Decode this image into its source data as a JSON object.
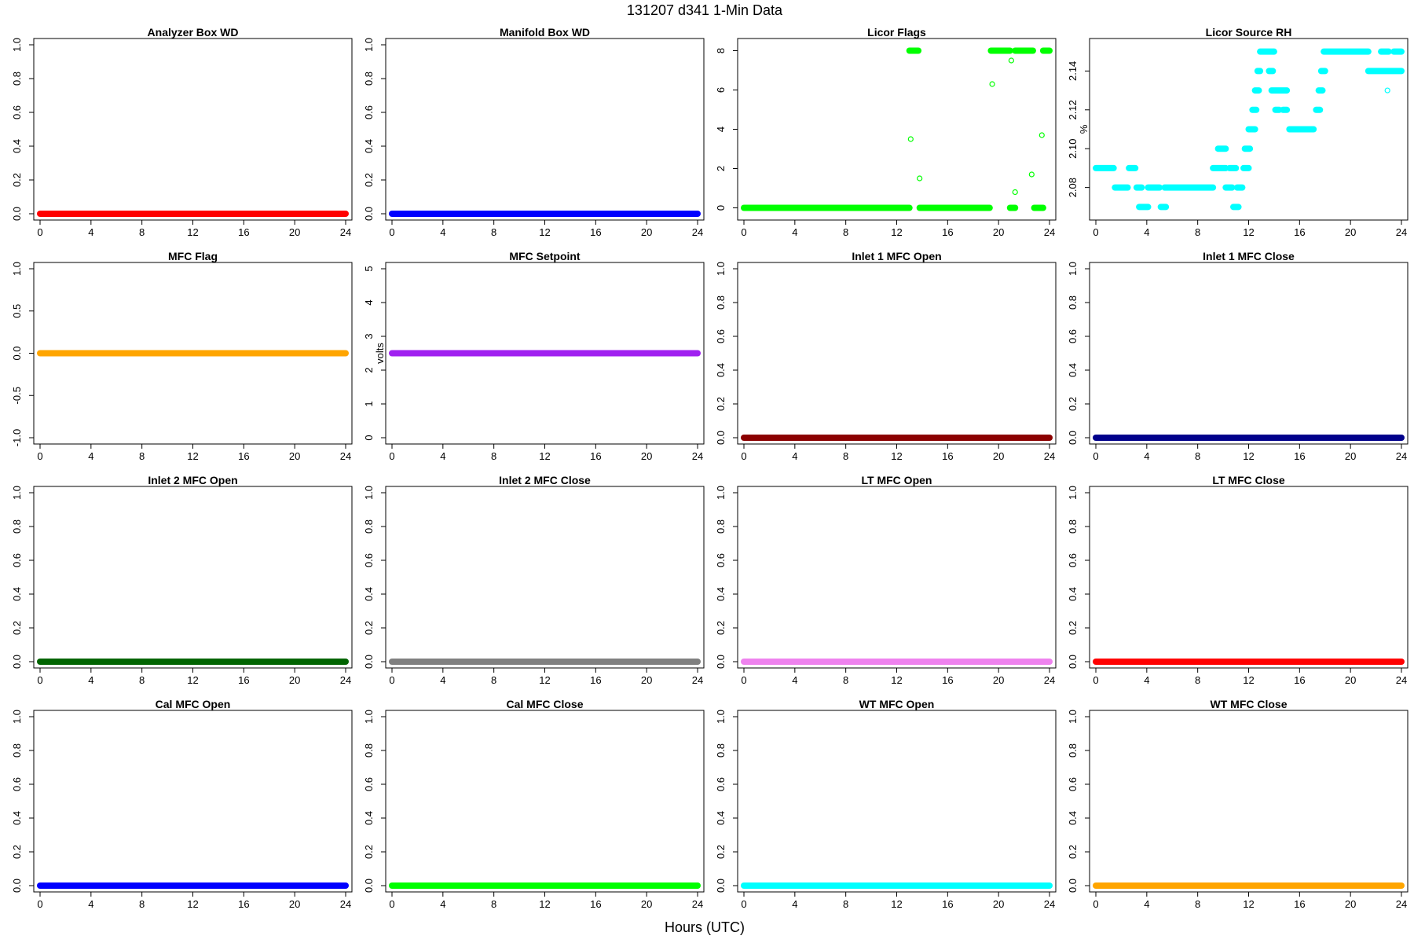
{
  "figure": {
    "title": "131207   d341   1-Min Data",
    "xlabel": "Hours (UTC)"
  },
  "chart_data": [
    {
      "type": "scatter",
      "title": "Analyzer Box WD",
      "ylabel": "",
      "color": "#ff0000",
      "xlim": [
        0,
        24
      ],
      "xticks": [
        0,
        4,
        8,
        12,
        16,
        20,
        24
      ],
      "ylim": [
        0,
        1
      ],
      "yticks": [
        0.0,
        0.2,
        0.4,
        0.6,
        0.8,
        1.0
      ],
      "ytick_labels": [
        "0.0",
        "0.2",
        "0.4",
        "0.6",
        "0.8",
        "1.0"
      ],
      "series": [
        {
          "x_range": [
            0,
            24
          ],
          "y": 0
        }
      ]
    },
    {
      "type": "scatter",
      "title": "Manifold Box WD",
      "ylabel": "",
      "color": "#0000ff",
      "xlim": [
        0,
        24
      ],
      "xticks": [
        0,
        4,
        8,
        12,
        16,
        20,
        24
      ],
      "ylim": [
        0,
        1
      ],
      "yticks": [
        0.0,
        0.2,
        0.4,
        0.6,
        0.8,
        1.0
      ],
      "ytick_labels": [
        "0.0",
        "0.2",
        "0.4",
        "0.6",
        "0.8",
        "1.0"
      ],
      "series": [
        {
          "x_range": [
            0,
            24
          ],
          "y": 0
        }
      ]
    },
    {
      "type": "scatter",
      "title": "Licor Flags",
      "ylabel": "",
      "color": "#00ff00",
      "xlim": [
        0,
        24
      ],
      "xticks": [
        0,
        4,
        8,
        12,
        16,
        20,
        24
      ],
      "ylim": [
        -0.3,
        8.3
      ],
      "yticks": [
        0,
        2,
        4,
        6,
        8
      ],
      "ytick_labels": [
        "0",
        "2",
        "4",
        "6",
        "8"
      ],
      "series": [
        {
          "x_range": [
            0,
            13.0
          ],
          "y": 0
        },
        {
          "x_range": [
            13.0,
            13.7
          ],
          "y": 8
        },
        {
          "x_range": [
            13.8,
            19.3
          ],
          "y": 0
        },
        {
          "x_range": [
            19.4,
            20.9
          ],
          "y": 8
        },
        {
          "x_range": [
            20.9,
            21.3
          ],
          "y": 0
        },
        {
          "x_range": [
            21.3,
            22.7
          ],
          "y": 8
        },
        {
          "x_range": [
            22.8,
            23.5
          ],
          "y": 0
        },
        {
          "x_range": [
            23.5,
            24
          ],
          "y": 8
        }
      ],
      "points": [
        [
          13.1,
          3.5
        ],
        [
          13.8,
          1.5
        ],
        [
          19.5,
          6.3
        ],
        [
          21.0,
          7.5
        ],
        [
          21.3,
          0.8
        ],
        [
          22.6,
          1.7
        ],
        [
          23.4,
          3.7
        ]
      ]
    },
    {
      "type": "scatter",
      "title": "Licor Source RH",
      "ylabel": "%",
      "color": "#00ffff",
      "xlim": [
        0,
        24
      ],
      "xticks": [
        0,
        4,
        8,
        12,
        16,
        20,
        24
      ],
      "ylim": [
        2.0665,
        2.1535
      ],
      "yticks": [
        2.08,
        2.1,
        2.12,
        2.14
      ],
      "ytick_labels": [
        "2.08",
        "2.10",
        "2.12",
        "2.14"
      ],
      "series": [
        {
          "x_range": [
            0,
            1.4
          ],
          "y": 2.09
        },
        {
          "x_range": [
            1.5,
            2.5
          ],
          "y": 2.08
        },
        {
          "x_range": [
            2.6,
            3.1
          ],
          "y": 2.09
        },
        {
          "x_range": [
            3.2,
            3.6
          ],
          "y": 2.08
        },
        {
          "x_range": [
            3.4,
            4.1
          ],
          "y": 2.07
        },
        {
          "x_range": [
            4.1,
            5.0
          ],
          "y": 2.08
        },
        {
          "x_range": [
            5.1,
            5.5
          ],
          "y": 2.07
        },
        {
          "x_range": [
            5.4,
            9.2
          ],
          "y": 2.08
        },
        {
          "x_range": [
            9.2,
            10.2
          ],
          "y": 2.09
        },
        {
          "x_range": [
            9.6,
            10.2
          ],
          "y": 2.1
        },
        {
          "x_range": [
            10.2,
            10.7
          ],
          "y": 2.08
        },
        {
          "x_range": [
            10.5,
            11.0
          ],
          "y": 2.09
        },
        {
          "x_range": [
            10.8,
            11.2
          ],
          "y": 2.07
        },
        {
          "x_range": [
            11.1,
            11.5
          ],
          "y": 2.08
        },
        {
          "x_range": [
            11.6,
            12.0
          ],
          "y": 2.09
        },
        {
          "x_range": [
            11.7,
            12.1
          ],
          "y": 2.1
        },
        {
          "x_range": [
            12.0,
            12.5
          ],
          "y": 2.11
        },
        {
          "x_range": [
            12.3,
            12.6
          ],
          "y": 2.12
        },
        {
          "x_range": [
            12.5,
            12.8
          ],
          "y": 2.13
        },
        {
          "x_range": [
            12.7,
            12.9
          ],
          "y": 2.14
        },
        {
          "x_range": [
            12.9,
            14.0
          ],
          "y": 2.15
        },
        {
          "x_range": [
            13.6,
            13.9
          ],
          "y": 2.14
        },
        {
          "x_range": [
            13.8,
            15.0
          ],
          "y": 2.13
        },
        {
          "x_range": [
            14.1,
            14.4
          ],
          "y": 2.12
        },
        {
          "x_range": [
            14.7,
            15.0
          ],
          "y": 2.12
        },
        {
          "x_range": [
            15.2,
            17.1
          ],
          "y": 2.11
        },
        {
          "x_range": [
            17.3,
            17.6
          ],
          "y": 2.12
        },
        {
          "x_range": [
            17.5,
            17.8
          ],
          "y": 2.13
        },
        {
          "x_range": [
            17.7,
            18.0
          ],
          "y": 2.14
        },
        {
          "x_range": [
            17.9,
            21.4
          ],
          "y": 2.15
        },
        {
          "x_range": [
            21.4,
            24.0
          ],
          "y": 2.14
        },
        {
          "x_range": [
            22.4,
            23.0
          ],
          "y": 2.15
        },
        {
          "x_range": [
            23.4,
            24.0
          ],
          "y": 2.15
        }
      ],
      "points": [
        [
          22.9,
          2.13
        ]
      ]
    },
    {
      "type": "scatter",
      "title": "MFC Flag",
      "ylabel": "",
      "color": "#ffa500",
      "xlim": [
        0,
        24
      ],
      "xticks": [
        0,
        4,
        8,
        12,
        16,
        20,
        24
      ],
      "ylim": [
        -1,
        1
      ],
      "yticks": [
        -1.0,
        -0.5,
        0.0,
        0.5,
        1.0
      ],
      "ytick_labels": [
        "-1.0",
        "-0.5",
        "0.0",
        "0.5",
        "1.0"
      ],
      "series": [
        {
          "x_range": [
            0,
            24
          ],
          "y": 0
        }
      ]
    },
    {
      "type": "scatter",
      "title": "MFC Setpoint",
      "ylabel": "volts",
      "color": "#a020f0",
      "xlim": [
        0,
        24
      ],
      "xticks": [
        0,
        4,
        8,
        12,
        16,
        20,
        24
      ],
      "ylim": [
        0,
        5
      ],
      "yticks": [
        0,
        1,
        2,
        3,
        4,
        5
      ],
      "ytick_labels": [
        "0",
        "1",
        "2",
        "3",
        "4",
        "5"
      ],
      "series": [
        {
          "x_range": [
            0,
            24
          ],
          "y": 2.5
        }
      ]
    },
    {
      "type": "scatter",
      "title": "Inlet 1 MFC Open",
      "ylabel": "",
      "color": "#8b0000",
      "xlim": [
        0,
        24
      ],
      "xticks": [
        0,
        4,
        8,
        12,
        16,
        20,
        24
      ],
      "ylim": [
        0,
        1
      ],
      "yticks": [
        0.0,
        0.2,
        0.4,
        0.6,
        0.8,
        1.0
      ],
      "ytick_labels": [
        "0.0",
        "0.2",
        "0.4",
        "0.6",
        "0.8",
        "1.0"
      ],
      "series": [
        {
          "x_range": [
            0,
            24
          ],
          "y": 0
        }
      ]
    },
    {
      "type": "scatter",
      "title": "Inlet 1 MFC Close",
      "ylabel": "",
      "color": "#00008b",
      "xlim": [
        0,
        24
      ],
      "xticks": [
        0,
        4,
        8,
        12,
        16,
        20,
        24
      ],
      "ylim": [
        0,
        1
      ],
      "yticks": [
        0.0,
        0.2,
        0.4,
        0.6,
        0.8,
        1.0
      ],
      "ytick_labels": [
        "0.0",
        "0.2",
        "0.4",
        "0.6",
        "0.8",
        "1.0"
      ],
      "series": [
        {
          "x_range": [
            0,
            24
          ],
          "y": 0
        }
      ]
    },
    {
      "type": "scatter",
      "title": "Inlet 2 MFC Open",
      "ylabel": "",
      "color": "#006400",
      "xlim": [
        0,
        24
      ],
      "xticks": [
        0,
        4,
        8,
        12,
        16,
        20,
        24
      ],
      "ylim": [
        0,
        1
      ],
      "yticks": [
        0.0,
        0.2,
        0.4,
        0.6,
        0.8,
        1.0
      ],
      "ytick_labels": [
        "0.0",
        "0.2",
        "0.4",
        "0.6",
        "0.8",
        "1.0"
      ],
      "series": [
        {
          "x_range": [
            0,
            24
          ],
          "y": 0
        }
      ]
    },
    {
      "type": "scatter",
      "title": "Inlet 2 MFC Close",
      "ylabel": "",
      "color": "#808080",
      "xlim": [
        0,
        24
      ],
      "xticks": [
        0,
        4,
        8,
        12,
        16,
        20,
        24
      ],
      "ylim": [
        0,
        1
      ],
      "yticks": [
        0.0,
        0.2,
        0.4,
        0.6,
        0.8,
        1.0
      ],
      "ytick_labels": [
        "0.0",
        "0.2",
        "0.4",
        "0.6",
        "0.8",
        "1.0"
      ],
      "series": [
        {
          "x_range": [
            0,
            24
          ],
          "y": 0
        }
      ]
    },
    {
      "type": "scatter",
      "title": "LT MFC Open",
      "ylabel": "",
      "color": "#ee82ee",
      "xlim": [
        0,
        24
      ],
      "xticks": [
        0,
        4,
        8,
        12,
        16,
        20,
        24
      ],
      "ylim": [
        0,
        1
      ],
      "yticks": [
        0.0,
        0.2,
        0.4,
        0.6,
        0.8,
        1.0
      ],
      "ytick_labels": [
        "0.0",
        "0.2",
        "0.4",
        "0.6",
        "0.8",
        "1.0"
      ],
      "series": [
        {
          "x_range": [
            0,
            24
          ],
          "y": 0
        }
      ]
    },
    {
      "type": "scatter",
      "title": "LT MFC Close",
      "ylabel": "",
      "color": "#ff0000",
      "xlim": [
        0,
        24
      ],
      "xticks": [
        0,
        4,
        8,
        12,
        16,
        20,
        24
      ],
      "ylim": [
        0,
        1
      ],
      "yticks": [
        0.0,
        0.2,
        0.4,
        0.6,
        0.8,
        1.0
      ],
      "ytick_labels": [
        "0.0",
        "0.2",
        "0.4",
        "0.6",
        "0.8",
        "1.0"
      ],
      "series": [
        {
          "x_range": [
            0,
            24
          ],
          "y": 0
        }
      ]
    },
    {
      "type": "scatter",
      "title": "Cal MFC Open",
      "ylabel": "",
      "color": "#0000ff",
      "xlim": [
        0,
        24
      ],
      "xticks": [
        0,
        4,
        8,
        12,
        16,
        20,
        24
      ],
      "ylim": [
        0,
        1
      ],
      "yticks": [
        0.0,
        0.2,
        0.4,
        0.6,
        0.8,
        1.0
      ],
      "ytick_labels": [
        "0.0",
        "0.2",
        "0.4",
        "0.6",
        "0.8",
        "1.0"
      ],
      "series": [
        {
          "x_range": [
            0,
            24
          ],
          "y": 0
        }
      ]
    },
    {
      "type": "scatter",
      "title": "Cal MFC Close",
      "ylabel": "",
      "color": "#00ff00",
      "xlim": [
        0,
        24
      ],
      "xticks": [
        0,
        4,
        8,
        12,
        16,
        20,
        24
      ],
      "ylim": [
        0,
        1
      ],
      "yticks": [
        0.0,
        0.2,
        0.4,
        0.6,
        0.8,
        1.0
      ],
      "ytick_labels": [
        "0.0",
        "0.2",
        "0.4",
        "0.6",
        "0.8",
        "1.0"
      ],
      "series": [
        {
          "x_range": [
            0,
            24
          ],
          "y": 0
        }
      ]
    },
    {
      "type": "scatter",
      "title": "WT MFC Open",
      "ylabel": "",
      "color": "#00ffff",
      "xlim": [
        0,
        24
      ],
      "xticks": [
        0,
        4,
        8,
        12,
        16,
        20,
        24
      ],
      "ylim": [
        0,
        1
      ],
      "yticks": [
        0.0,
        0.2,
        0.4,
        0.6,
        0.8,
        1.0
      ],
      "ytick_labels": [
        "0.0",
        "0.2",
        "0.4",
        "0.6",
        "0.8",
        "1.0"
      ],
      "series": [
        {
          "x_range": [
            0,
            24
          ],
          "y": 0
        }
      ]
    },
    {
      "type": "scatter",
      "title": "WT MFC Close",
      "ylabel": "",
      "color": "#ffa500",
      "xlim": [
        0,
        24
      ],
      "xticks": [
        0,
        4,
        8,
        12,
        16,
        20,
        24
      ],
      "ylim": [
        0,
        1
      ],
      "yticks": [
        0.0,
        0.2,
        0.4,
        0.6,
        0.8,
        1.0
      ],
      "ytick_labels": [
        "0.0",
        "0.2",
        "0.4",
        "0.6",
        "0.8",
        "1.0"
      ],
      "series": [
        {
          "x_range": [
            0,
            24
          ],
          "y": 0
        }
      ]
    }
  ]
}
